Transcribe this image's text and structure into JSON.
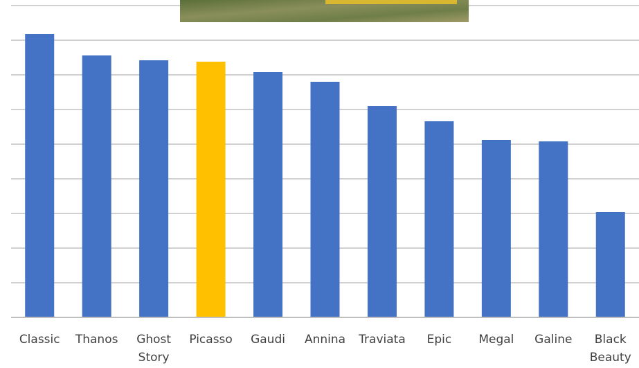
{
  "chart_data": {
    "type": "bar",
    "categories": [
      "Classic",
      "Thanos",
      "Ghost Story",
      "Picasso",
      "Gaudi",
      "Annina",
      "Traviata",
      "Epic",
      "Megal",
      "Galine",
      "Black Beauty"
    ],
    "values": [
      8.18,
      7.56,
      7.42,
      7.38,
      7.08,
      6.8,
      6.1,
      5.66,
      5.12,
      5.08,
      3.04
    ],
    "colors": [
      "#4472c4",
      "#4472c4",
      "#4472c4",
      "#ffc000",
      "#4472c4",
      "#4472c4",
      "#4472c4",
      "#4472c4",
      "#4472c4",
      "#4472c4",
      "#4472c4"
    ],
    "ylim": [
      0,
      9
    ],
    "yticks": [
      0,
      1,
      2,
      3,
      4,
      5,
      6,
      7,
      8,
      9
    ],
    "grid": true
  }
}
